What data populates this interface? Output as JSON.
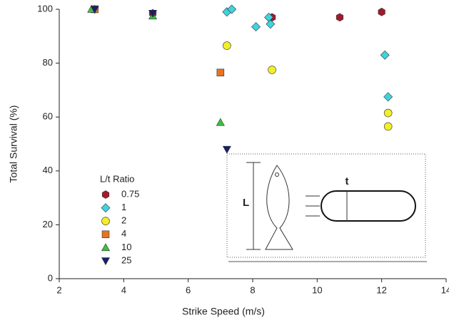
{
  "chart_data": {
    "type": "scatter",
    "x_label": "Strike Speed (m/s)",
    "y_label": "Total Survival (%)",
    "xlim": [
      2,
      14
    ],
    "xticks": [
      2,
      4,
      6,
      8,
      10,
      12,
      14
    ],
    "ylim": [
      0,
      100
    ],
    "yticks": [
      0,
      20,
      40,
      60,
      80,
      100
    ],
    "grid": false,
    "legend_title": "L/t Ratio",
    "legend_position": "lower left",
    "annotations": [
      "L",
      "t"
    ],
    "series": [
      {
        "name": "0.75",
        "color": "#a01c2c",
        "marker": "hexagon",
        "x": [
          3.1,
          4.9,
          8.6,
          10.7,
          12.0
        ],
        "values": [
          100,
          98.5,
          97,
          97,
          99
        ]
      },
      {
        "name": "1",
        "color": "#3fd3dd",
        "marker": "diamond",
        "x": [
          7.2,
          7.35,
          8.1,
          8.5,
          8.55,
          12.1,
          12.2
        ],
        "values": [
          99,
          100,
          93.5,
          97,
          94.5,
          83,
          67.5
        ]
      },
      {
        "name": "2",
        "color": "#f2ee2a",
        "marker": "circle",
        "x": [
          7.2,
          8.6,
          12.2,
          12.2
        ],
        "values": [
          86.5,
          77.5,
          61.5,
          56.5
        ]
      },
      {
        "name": "4",
        "color": "#e8741f",
        "marker": "square",
        "x": [
          3.1,
          7.0
        ],
        "values": [
          100,
          76.5
        ]
      },
      {
        "name": "10",
        "color": "#3cc03c",
        "marker": "triangle",
        "x": [
          3.0,
          4.9,
          7.0
        ],
        "values": [
          100,
          97.5,
          58
        ]
      },
      {
        "name": "25",
        "color": "#15206e",
        "marker": "triangle-down",
        "x": [
          3.1,
          4.9,
          7.2
        ],
        "values": [
          100,
          98.5,
          48
        ]
      }
    ]
  }
}
